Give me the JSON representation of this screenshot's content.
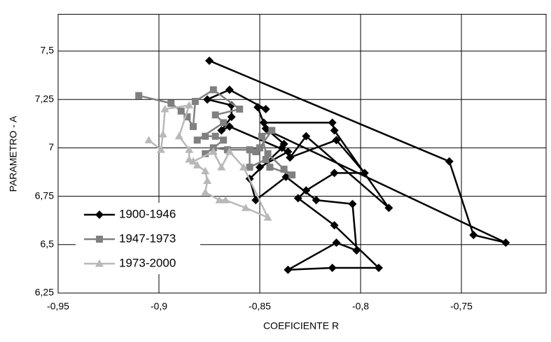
{
  "chart_data": {
    "type": "line",
    "x_label": "COEFICIENTE R",
    "y_label": "PARAMETRO - A",
    "xlim": [
      -0.95,
      -0.708
    ],
    "ylim": [
      6.25,
      7.69
    ],
    "xticks": [
      {
        "value": -0.95,
        "label": "-0,95"
      },
      {
        "value": -0.9,
        "label": "-0,9"
      },
      {
        "value": -0.85,
        "label": "-0,85"
      },
      {
        "value": -0.8,
        "label": "-0,8"
      },
      {
        "value": -0.75,
        "label": "-0,75"
      }
    ],
    "yticks": [
      {
        "value": 6.25,
        "label": "6,25"
      },
      {
        "value": 6.5,
        "label": "6,5"
      },
      {
        "value": 6.75,
        "label": "6,75"
      },
      7,
      {
        "value": 7.25,
        "label": "7,25"
      },
      {
        "value": 7.5,
        "label": "7,5"
      }
    ],
    "grid": true,
    "legend": "lower-left",
    "series": [
      {
        "name": "1900-1946",
        "color": "#000000",
        "marker": "diamond",
        "x": [
          -0.875,
          -0.756,
          -0.744,
          -0.728,
          -0.846,
          -0.848,
          -0.814,
          -0.813,
          -0.786,
          -0.827,
          -0.835,
          -0.812,
          -0.798,
          -0.813,
          -0.827,
          -0.831,
          -0.813,
          -0.791,
          -0.814,
          -0.836,
          -0.812,
          -0.802,
          -0.804,
          -0.822,
          -0.837,
          -0.852,
          -0.855,
          -0.839,
          -0.838,
          -0.847,
          -0.851,
          -0.847,
          -0.865,
          -0.876,
          -0.864,
          -0.864,
          -0.869,
          -0.865,
          -0.836,
          -0.85
        ],
        "values": [
          7.45,
          6.93,
          6.55,
          6.51,
          7.09,
          7.13,
          7.13,
          7.09,
          6.69,
          7.06,
          6.95,
          7.04,
          6.87,
          6.87,
          6.78,
          6.74,
          6.6,
          6.38,
          6.38,
          6.37,
          6.51,
          6.47,
          6.71,
          6.73,
          6.85,
          6.73,
          6.84,
          7.0,
          7.02,
          7.1,
          7.21,
          7.2,
          7.3,
          7.25,
          7.22,
          7.16,
          7.09,
          7.11,
          6.98,
          6.9
        ]
      },
      {
        "name": "1947-1973",
        "color": "#808080",
        "marker": "square",
        "x": [
          -0.91,
          -0.894,
          -0.889,
          -0.886,
          -0.883,
          -0.882,
          -0.873,
          -0.86,
          -0.872,
          -0.868,
          -0.881,
          -0.877,
          -0.872,
          -0.868,
          -0.877,
          -0.873,
          -0.866,
          -0.855,
          -0.855,
          -0.847,
          -0.846,
          -0.838,
          -0.834,
          -0.845,
          -0.849,
          -0.844,
          -0.85,
          -0.852
        ],
        "values": [
          7.27,
          7.23,
          7.19,
          7.16,
          7.11,
          7.24,
          7.3,
          7.2,
          7.17,
          7.13,
          7.04,
          7.06,
          7.06,
          7.04,
          6.97,
          7.0,
          6.99,
          6.99,
          6.9,
          6.94,
          6.97,
          6.89,
          6.86,
          6.9,
          7.06,
          7.09,
          7.0,
          6.98
        ]
      },
      {
        "name": "1973-2000",
        "color": "#b8b8b8",
        "marker": "triangle",
        "x": [
          -0.905,
          -0.899,
          -0.898,
          -0.897,
          -0.885,
          -0.89,
          -0.885,
          -0.885,
          -0.881,
          -0.877,
          -0.876,
          -0.877,
          -0.87,
          -0.867,
          -0.857,
          -0.846,
          -0.858,
          -0.865,
          -0.869,
          -0.873,
          -0.883
        ],
        "values": [
          7.04,
          6.99,
          7.07,
          7.2,
          7.22,
          7.06,
          6.99,
          6.94,
          6.91,
          6.88,
          6.83,
          6.77,
          6.73,
          6.73,
          6.69,
          6.64,
          6.9,
          6.98,
          6.9,
          6.98,
          6.93
        ]
      }
    ]
  }
}
